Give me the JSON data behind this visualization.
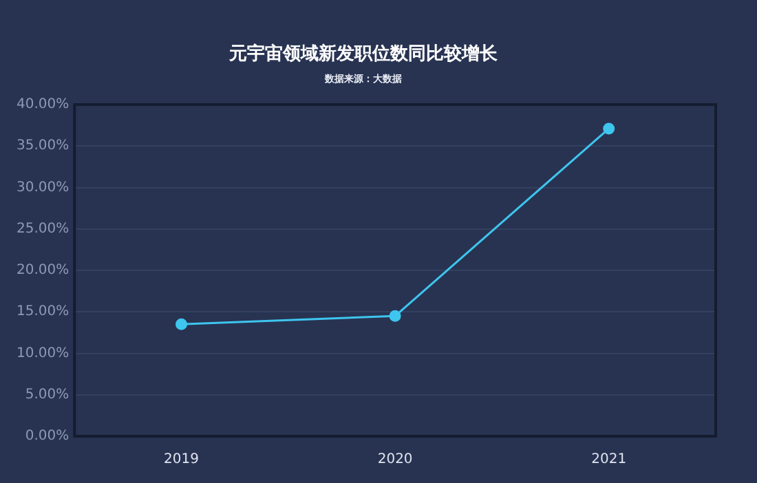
{
  "chart_data": {
    "type": "line",
    "title": "元宇宙领域新发职位数同比较增长",
    "subtitle": "数据来源：大数据",
    "categories": [
      "2019",
      "2020",
      "2021"
    ],
    "series": [
      {
        "color": "#3ec6ef",
        "values": [
          13.5,
          14.5,
          37.1
        ]
      }
    ],
    "ylim": [
      0,
      40
    ],
    "yticks": [
      {
        "value": 0,
        "label": "0.00%"
      },
      {
        "value": 5,
        "label": "5.00%"
      },
      {
        "value": 10,
        "label": "10.00%"
      },
      {
        "value": 15,
        "label": "15.00%"
      },
      {
        "value": 20,
        "label": "20.00%"
      },
      {
        "value": 25,
        "label": "25.00%"
      },
      {
        "value": 30,
        "label": "30.00%"
      },
      {
        "value": 35,
        "label": "35.00%"
      },
      {
        "value": 40,
        "label": "40.00%"
      }
    ],
    "grid": "y",
    "marker": "circle",
    "legend": false
  }
}
